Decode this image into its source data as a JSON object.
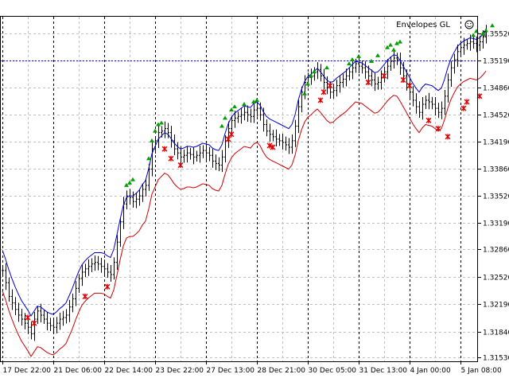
{
  "colors": {
    "background": "#ffffff",
    "frame": "#000000",
    "grid": "#c0c0c0",
    "bars": "#000000",
    "upper_band": "#0000cc",
    "lower_band": "#cc0000",
    "buy_signal": "#00a000",
    "sell_signal": "#e00000",
    "price_line": "#0000ff"
  },
  "chart_data": {
    "type": "line",
    "title": "Envelopes GL",
    "title_icon": "smiley-icon",
    "grid": true,
    "price_line_value": 1.3519,
    "ylim": [
      1.3148,
      1.3573
    ],
    "y_ticks": [
      "1.35520",
      "1.35190",
      "1.34860",
      "1.34520",
      "1.34190",
      "1.33860",
      "1.33520",
      "1.33190",
      "1.32860",
      "1.32520",
      "1.32190",
      "1.31840",
      "1.31530"
    ],
    "x_ticks": [
      "17 Dec 22:00",
      "21 Dec 06:00",
      "22 Dec 14:00",
      "23 Dec 22:00",
      "27 Dec 13:00",
      "28 Dec 21:00",
      "30 Dec 05:00",
      "31 Dec 13:00",
      "4 Jan 00:00",
      "5 Jan 08:00"
    ],
    "bars_per_x_tick": 16,
    "series": [
      {
        "type": "bar",
        "close": [
          1.326,
          1.3245,
          1.3228,
          1.322,
          1.3212,
          1.3205,
          1.32,
          1.3195,
          1.319,
          1.3182,
          1.32,
          1.321,
          1.3205,
          1.32,
          1.3195,
          1.3192,
          1.319,
          1.3195,
          1.32,
          1.3202,
          1.3205,
          1.3215,
          1.3225,
          1.3238,
          1.325,
          1.3258,
          1.3262,
          1.3265,
          1.3268,
          1.327,
          1.3268,
          1.3265,
          1.3262,
          1.3258,
          1.3255,
          1.327,
          1.3295,
          1.332,
          1.3342,
          1.3352,
          1.335,
          1.3345,
          1.3348,
          1.3352,
          1.336,
          1.3365,
          1.3385,
          1.341,
          1.342,
          1.343,
          1.3432,
          1.3435,
          1.343,
          1.342,
          1.341,
          1.3405,
          1.34,
          1.3402,
          1.3405,
          1.3403,
          1.34,
          1.3402,
          1.3405,
          1.3408,
          1.3405,
          1.3402,
          1.3395,
          1.3392,
          1.339,
          1.34,
          1.342,
          1.3435,
          1.3445,
          1.3448,
          1.345,
          1.3452,
          1.3455,
          1.3452,
          1.345,
          1.3458,
          1.346,
          1.3452,
          1.344,
          1.3432,
          1.3428,
          1.3425,
          1.3422,
          1.342,
          1.3418,
          1.3415,
          1.3412,
          1.342,
          1.3438,
          1.3462,
          1.348,
          1.3492,
          1.3498,
          1.35,
          1.3505,
          1.3508,
          1.35,
          1.3492,
          1.3485,
          1.348,
          1.3482,
          1.3488,
          1.3492,
          1.3496,
          1.35,
          1.3505,
          1.351,
          1.3515,
          1.3512,
          1.351,
          1.3505,
          1.35,
          1.3495,
          1.349,
          1.3492,
          1.3498,
          1.3505,
          1.3512,
          1.3518,
          1.3522,
          1.352,
          1.351,
          1.35,
          1.349,
          1.348,
          1.347,
          1.3462,
          1.3455,
          1.3465,
          1.347,
          1.3468,
          1.3465,
          1.346,
          1.3455,
          1.346,
          1.3475,
          1.3495,
          1.351,
          1.352,
          1.353,
          1.3535,
          1.3538,
          1.354,
          1.3542,
          1.354,
          1.3538,
          1.3542,
          1.3548,
          1.3555
        ]
      },
      {
        "name": "",
        "type": "line",
        "values": [
          1.3285,
          1.3274,
          1.3261,
          1.325,
          1.324,
          1.3231,
          1.3223,
          1.3217,
          1.3211,
          1.3204,
          1.321,
          1.3216,
          1.3215,
          1.3212,
          1.3209,
          1.3207,
          1.3206,
          1.3209,
          1.3213,
          1.3216,
          1.322,
          1.3229,
          1.3238,
          1.3249,
          1.3259,
          1.3267,
          1.3272,
          1.3276,
          1.3279,
          1.3282,
          1.3282,
          1.3282,
          1.3281,
          1.3278,
          1.3276,
          1.3286,
          1.3304,
          1.3323,
          1.334,
          1.335,
          1.3352,
          1.3352,
          1.3355,
          1.3359,
          1.3366,
          1.3371,
          1.3386,
          1.3404,
          1.3413,
          1.3422,
          1.3426,
          1.343,
          1.3428,
          1.3423,
          1.3417,
          1.3413,
          1.341,
          1.3411,
          1.3413,
          1.3413,
          1.3412,
          1.3413,
          1.3415,
          1.3417,
          1.3416,
          1.3415,
          1.3411,
          1.3409,
          1.3408,
          1.3415,
          1.3429,
          1.3441,
          1.3449,
          1.3454,
          1.3457,
          1.346,
          1.3463,
          1.3462,
          1.3461,
          1.3466,
          1.3468,
          1.3464,
          1.3456,
          1.345,
          1.3447,
          1.3445,
          1.3443,
          1.3441,
          1.3439,
          1.3437,
          1.3435,
          1.344,
          1.3452,
          1.347,
          1.3483,
          1.3493,
          1.3499,
          1.3502,
          1.3506,
          1.3509,
          1.3505,
          1.35,
          1.3495,
          1.3492,
          1.3493,
          1.3497,
          1.35,
          1.3503,
          1.3506,
          1.351,
          1.3514,
          1.3518,
          1.3517,
          1.3516,
          1.3513,
          1.351,
          1.3507,
          1.3504,
          1.3505,
          1.3509,
          1.3514,
          1.3519,
          1.3523,
          1.3526,
          1.3525,
          1.3519,
          1.3512,
          1.3505,
          1.3498,
          1.3491,
          1.3485,
          1.348,
          1.3486,
          1.349,
          1.3489,
          1.3488,
          1.3485,
          1.3482,
          1.3485,
          1.3496,
          1.351,
          1.3521,
          1.3529,
          1.3536,
          1.354,
          1.3543,
          1.3545,
          1.3547,
          1.3546,
          1.3545,
          1.3547,
          1.3551,
          1.3556
        ]
      },
      {
        "name": "",
        "type": "line",
        "values": [
          1.3235,
          1.3224,
          1.3211,
          1.32,
          1.319,
          1.3181,
          1.3173,
          1.3167,
          1.3161,
          1.3154,
          1.316,
          1.3166,
          1.3165,
          1.3162,
          1.3159,
          1.3157,
          1.3156,
          1.3159,
          1.3163,
          1.3166,
          1.317,
          1.3179,
          1.3188,
          1.3199,
          1.3209,
          1.3217,
          1.3222,
          1.3226,
          1.3229,
          1.3232,
          1.3232,
          1.3232,
          1.3231,
          1.3228,
          1.3226,
          1.3236,
          1.3254,
          1.3273,
          1.329,
          1.33,
          1.3302,
          1.3302,
          1.3305,
          1.3309,
          1.3316,
          1.3321,
          1.3336,
          1.3354,
          1.3363,
          1.3372,
          1.3376,
          1.338,
          1.3378,
          1.3373,
          1.3367,
          1.3363,
          1.336,
          1.3361,
          1.3363,
          1.3363,
          1.3362,
          1.3363,
          1.3365,
          1.3367,
          1.3366,
          1.3365,
          1.3361,
          1.3359,
          1.3358,
          1.3365,
          1.3379,
          1.3391,
          1.3399,
          1.3404,
          1.3407,
          1.341,
          1.3413,
          1.3412,
          1.3411,
          1.3416,
          1.3418,
          1.3414,
          1.3406,
          1.34,
          1.3397,
          1.3395,
          1.3393,
          1.3391,
          1.3389,
          1.3387,
          1.3385,
          1.339,
          1.3402,
          1.342,
          1.3433,
          1.3443,
          1.3449,
          1.3452,
          1.3456,
          1.3459,
          1.3455,
          1.345,
          1.3445,
          1.3442,
          1.3443,
          1.3447,
          1.345,
          1.3453,
          1.3456,
          1.346,
          1.3464,
          1.3468,
          1.3467,
          1.3466,
          1.3463,
          1.346,
          1.3457,
          1.3454,
          1.3455,
          1.3459,
          1.3464,
          1.3469,
          1.3473,
          1.3476,
          1.3475,
          1.3469,
          1.3462,
          1.3455,
          1.3448,
          1.3441,
          1.3435,
          1.343,
          1.3436,
          1.344,
          1.3439,
          1.3438,
          1.3435,
          1.3432,
          1.3435,
          1.3446,
          1.346,
          1.3471,
          1.3479,
          1.3486,
          1.349,
          1.3493,
          1.3495,
          1.3497,
          1.3496,
          1.3495,
          1.3497,
          1.3501,
          1.3506
        ]
      },
      {
        "type": "scatter",
        "signal": "buy",
        "points": [
          [
            39,
            1.3365
          ],
          [
            40,
            1.3368
          ],
          [
            41,
            1.3372
          ],
          [
            46,
            1.3398
          ],
          [
            47,
            1.342
          ],
          [
            48,
            1.3432
          ],
          [
            49,
            1.344
          ],
          [
            50,
            1.3442
          ],
          [
            69,
            1.3438
          ],
          [
            70,
            1.3448
          ],
          [
            72,
            1.3458
          ],
          [
            73,
            1.3462
          ],
          [
            76,
            1.3465
          ],
          [
            79,
            1.3468
          ],
          [
            80,
            1.347
          ],
          [
            95,
            1.3478
          ],
          [
            96,
            1.349
          ],
          [
            97,
            1.35
          ],
          [
            98,
            1.3505
          ],
          [
            102,
            1.351
          ],
          [
            109,
            1.3515
          ],
          [
            110,
            1.352
          ],
          [
            112,
            1.3524
          ],
          [
            116,
            1.3518
          ],
          [
            118,
            1.3525
          ],
          [
            121,
            1.3535
          ],
          [
            122,
            1.3538
          ],
          [
            123,
            1.3532
          ],
          [
            124,
            1.354
          ],
          [
            125,
            1.3542
          ],
          [
            148,
            1.355
          ],
          [
            149,
            1.3555
          ],
          [
            151,
            1.3552
          ],
          [
            152,
            1.3556
          ],
          [
            154,
            1.3562
          ]
        ]
      },
      {
        "type": "scatter",
        "signal": "sell",
        "points": [
          [
            8,
            1.3202
          ],
          [
            10,
            1.3195
          ],
          [
            26,
            1.3228
          ],
          [
            33,
            1.324
          ],
          [
            51,
            1.341
          ],
          [
            53,
            1.3398
          ],
          [
            56,
            1.339
          ],
          [
            71,
            1.3422
          ],
          [
            72,
            1.3428
          ],
          [
            84,
            1.3414
          ],
          [
            85,
            1.3412
          ],
          [
            100,
            1.347
          ],
          [
            101,
            1.348
          ],
          [
            103,
            1.3488
          ],
          [
            115,
            1.3492
          ],
          [
            120,
            1.35
          ],
          [
            126,
            1.3495
          ],
          [
            128,
            1.3488
          ],
          [
            134,
            1.3445
          ],
          [
            137,
            1.3435
          ],
          [
            140,
            1.3425
          ],
          [
            145,
            1.346
          ],
          [
            146,
            1.3468
          ],
          [
            150,
            1.3475
          ]
        ]
      }
    ]
  }
}
